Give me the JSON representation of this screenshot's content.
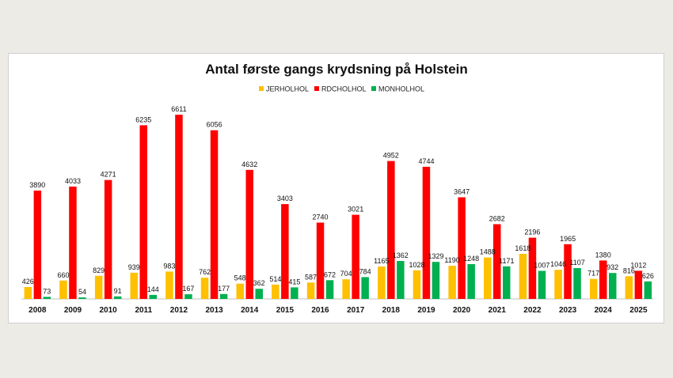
{
  "chart_data": {
    "type": "bar",
    "title": "Antal første gangs krydsning på Holstein",
    "xlabel": "",
    "ylabel": "",
    "ylim": [
      0,
      6700
    ],
    "legend_position": "top",
    "grid": false,
    "categories": [
      "2008",
      "2009",
      "2010",
      "2011",
      "2012",
      "2013",
      "2014",
      "2015",
      "2016",
      "2017",
      "2018",
      "2019",
      "2020",
      "2021",
      "2022",
      "2023",
      "2024",
      "2025"
    ],
    "series": [
      {
        "name": "JERHOLHOL",
        "color": "#ffc000",
        "values": [
          426,
          660,
          829,
          939,
          983,
          762,
          548,
          514,
          587,
          704,
          1165,
          1028,
          1190,
          1488,
          1618,
          1046,
          717,
          816
        ]
      },
      {
        "name": "RDCHOLHOL",
        "color": "#ff0000",
        "values": [
          3890,
          4033,
          4271,
          6235,
          6611,
          6056,
          4632,
          3403,
          2740,
          3021,
          4952,
          4744,
          3647,
          2682,
          2196,
          1965,
          1380,
          1012
        ]
      },
      {
        "name": "MONHOLHOL",
        "color": "#00b050",
        "values": [
          73,
          54,
          91,
          144,
          167,
          177,
          362,
          415,
          672,
          784,
          1362,
          1329,
          1248,
          1171,
          1007,
          1107,
          932,
          626
        ]
      }
    ]
  }
}
